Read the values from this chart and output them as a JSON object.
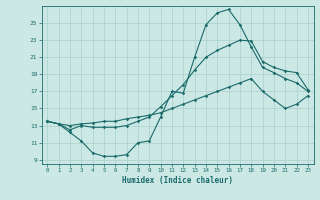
{
  "xlabel": "Humidex (Indice chaleur)",
  "bg_color": "#cce8e4",
  "grid_color": "#aacfcc",
  "line_color": "#1a6b6b",
  "xlim": [
    -0.5,
    23.5
  ],
  "ylim": [
    8.5,
    27.0
  ],
  "xticks": [
    0,
    1,
    2,
    3,
    4,
    5,
    6,
    7,
    8,
    9,
    10,
    11,
    12,
    13,
    14,
    15,
    16,
    17,
    18,
    19,
    20,
    21,
    22,
    23
  ],
  "yticks": [
    9,
    11,
    13,
    15,
    17,
    19,
    21,
    23,
    25
  ],
  "line1_x": [
    0,
    1,
    2,
    3,
    4,
    5,
    6,
    7,
    8,
    9,
    10,
    11,
    12,
    13,
    14,
    15,
    16,
    17,
    18,
    19,
    20,
    21,
    22,
    23
  ],
  "line1_y": [
    13.5,
    13.2,
    12.2,
    11.2,
    9.8,
    9.4,
    9.4,
    9.6,
    11.0,
    11.2,
    14.0,
    17.0,
    16.8,
    21.0,
    24.8,
    26.2,
    26.6,
    24.8,
    22.2,
    19.8,
    19.2,
    18.5,
    18.0,
    17.0
  ],
  "line2_x": [
    0,
    1,
    2,
    3,
    4,
    5,
    6,
    7,
    8,
    9,
    10,
    11,
    12,
    13,
    14,
    15,
    16,
    17,
    18,
    19,
    20,
    21,
    22,
    23
  ],
  "line2_y": [
    13.5,
    13.2,
    12.5,
    13.0,
    12.8,
    12.8,
    12.8,
    13.0,
    13.5,
    14.0,
    15.2,
    16.5,
    17.8,
    19.5,
    21.0,
    21.8,
    22.4,
    23.0,
    22.9,
    20.5,
    19.8,
    19.4,
    19.2,
    17.2
  ],
  "line3_x": [
    0,
    1,
    2,
    3,
    4,
    5,
    6,
    7,
    8,
    9,
    10,
    11,
    12,
    13,
    14,
    15,
    16,
    17,
    18,
    19,
    20,
    21,
    22,
    23
  ],
  "line3_y": [
    13.5,
    13.2,
    13.0,
    13.2,
    13.3,
    13.5,
    13.5,
    13.8,
    14.0,
    14.2,
    14.5,
    15.0,
    15.5,
    16.0,
    16.5,
    17.0,
    17.5,
    18.0,
    18.5,
    17.0,
    16.0,
    15.0,
    15.5,
    16.5
  ]
}
